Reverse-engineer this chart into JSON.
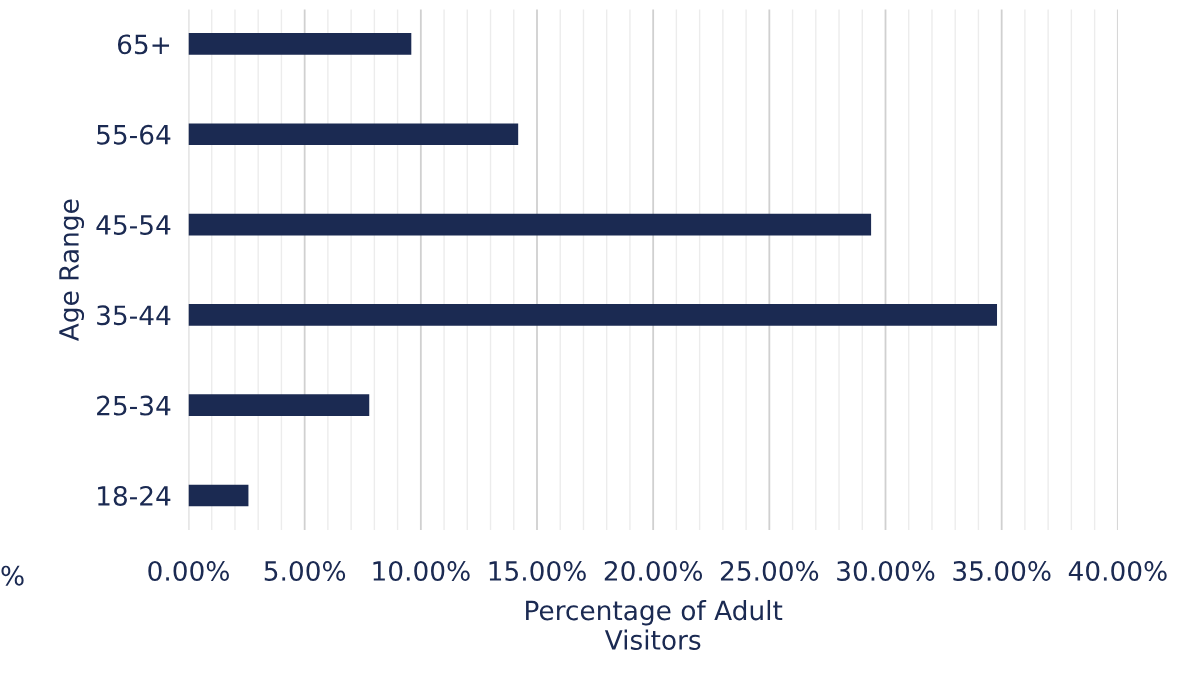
{
  "chart_data": {
    "type": "bar",
    "orientation": "horizontal",
    "categories": [
      "65+",
      "55-64",
      "45-54",
      "35-44",
      "25-34",
      "18-24"
    ],
    "values": [
      9.59,
      14.19,
      29.38,
      34.8,
      7.78,
      2.58
    ],
    "color": "#1b2a52",
    "xlabel": "Percentage of Adult Visitors",
    "ylabel": "Age Range",
    "xlim": [
      0,
      40
    ],
    "xticks": [
      {
        "value": 0,
        "label": "0.00%"
      },
      {
        "value": 5,
        "label": "5.00%"
      },
      {
        "value": 10,
        "label": "10.00%"
      },
      {
        "value": 15,
        "label": "15.00%"
      },
      {
        "value": 20,
        "label": "20.00%"
      },
      {
        "value": 25,
        "label": "25.00%"
      },
      {
        "value": 30,
        "label": "30.00%"
      },
      {
        "value": 35,
        "label": "35.00%"
      },
      {
        "value": 40,
        "label": "40.00%"
      }
    ],
    "annotations": [
      "%"
    ],
    "grid": "x",
    "legend": false
  }
}
